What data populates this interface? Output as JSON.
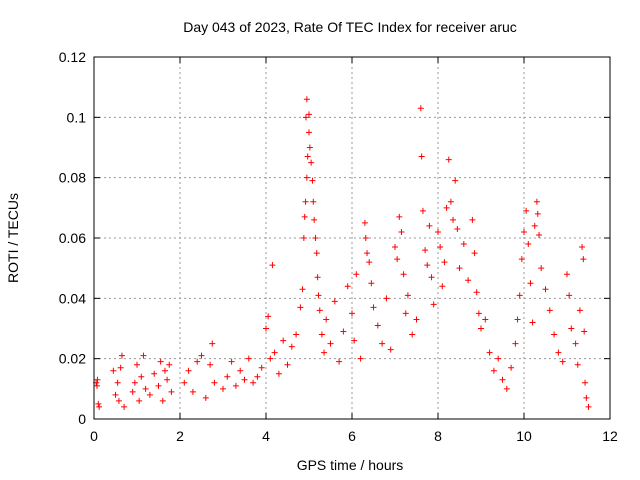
{
  "chart_data": {
    "type": "scatter",
    "title": "Day 043 of 2023, Rate Of TEC Index for receiver aruc",
    "xlabel": "GPS time / hours",
    "ylabel": "ROTI / TECUs",
    "xlim": [
      0,
      12
    ],
    "ylim": [
      0,
      0.12
    ],
    "xticks": [
      0,
      2,
      4,
      6,
      8,
      10,
      12
    ],
    "xtick_labels": [
      "0",
      "2",
      "4",
      "6",
      "8",
      "10",
      "12"
    ],
    "yticks": [
      0,
      0.02,
      0.04,
      0.06,
      0.08,
      0.1,
      0.12
    ],
    "ytick_labels": [
      "0",
      "0.02",
      "0.04",
      "0.06",
      "0.08",
      "0.1",
      "0.12"
    ],
    "grid": true,
    "marker": "+",
    "marker_color": "#ff0000",
    "series": [
      {
        "name": "ROTI",
        "points": [
          [
            0.05,
            0.012
          ],
          [
            0.08,
            0.013
          ],
          [
            0.1,
            0.005
          ],
          [
            0.12,
            0.004
          ],
          [
            0.07,
            0.011
          ],
          [
            0.45,
            0.016
          ],
          [
            0.5,
            0.008
          ],
          [
            0.55,
            0.012
          ],
          [
            0.58,
            0.006
          ],
          [
            0.62,
            0.017
          ],
          [
            0.65,
            0.021
          ],
          [
            0.7,
            0.004
          ],
          [
            0.9,
            0.009
          ],
          [
            0.95,
            0.012
          ],
          [
            1.0,
            0.018
          ],
          [
            1.05,
            0.006
          ],
          [
            1.1,
            0.014
          ],
          [
            1.15,
            0.021
          ],
          [
            1.2,
            0.01
          ],
          [
            1.3,
            0.008
          ],
          [
            1.4,
            0.015
          ],
          [
            1.5,
            0.011
          ],
          [
            1.55,
            0.019
          ],
          [
            1.6,
            0.006
          ],
          [
            1.65,
            0.016
          ],
          [
            1.7,
            0.013
          ],
          [
            1.75,
            0.018
          ],
          [
            1.8,
            0.009
          ],
          [
            2.1,
            0.012
          ],
          [
            2.2,
            0.016
          ],
          [
            2.3,
            0.009
          ],
          [
            2.4,
            0.019
          ],
          [
            2.5,
            0.021
          ],
          [
            2.6,
            0.007
          ],
          [
            2.7,
            0.018
          ],
          [
            2.75,
            0.025
          ],
          [
            2.8,
            0.012
          ],
          [
            3.0,
            0.01
          ],
          [
            3.1,
            0.014
          ],
          [
            3.2,
            0.019
          ],
          [
            3.3,
            0.011
          ],
          [
            3.4,
            0.016
          ],
          [
            3.5,
            0.013
          ],
          [
            3.6,
            0.02
          ],
          [
            3.7,
            0.012
          ],
          [
            3.8,
            0.014
          ],
          [
            3.9,
            0.017
          ],
          [
            4.0,
            0.03
          ],
          [
            4.05,
            0.034
          ],
          [
            4.1,
            0.02
          ],
          [
            4.15,
            0.051
          ],
          [
            4.2,
            0.022
          ],
          [
            4.3,
            0.015
          ],
          [
            4.4,
            0.026
          ],
          [
            4.5,
            0.018
          ],
          [
            4.6,
            0.024
          ],
          [
            4.7,
            0.028
          ],
          [
            4.8,
            0.037
          ],
          [
            4.85,
            0.043
          ],
          [
            4.88,
            0.06
          ],
          [
            4.9,
            0.067
          ],
          [
            4.92,
            0.072
          ],
          [
            4.95,
            0.08
          ],
          [
            4.97,
            0.087
          ],
          [
            5.0,
            0.095
          ],
          [
            4.93,
            0.1
          ],
          [
            4.95,
            0.106
          ],
          [
            5.0,
            0.101
          ],
          [
            5.02,
            0.09
          ],
          [
            5.05,
            0.085
          ],
          [
            5.08,
            0.079
          ],
          [
            5.1,
            0.072
          ],
          [
            5.12,
            0.066
          ],
          [
            5.15,
            0.06
          ],
          [
            5.18,
            0.055
          ],
          [
            5.2,
            0.047
          ],
          [
            5.22,
            0.041
          ],
          [
            5.25,
            0.036
          ],
          [
            5.3,
            0.028
          ],
          [
            5.35,
            0.022
          ],
          [
            5.4,
            0.033
          ],
          [
            5.5,
            0.025
          ],
          [
            5.6,
            0.039
          ],
          [
            5.7,
            0.019
          ],
          [
            5.8,
            0.029
          ],
          [
            5.9,
            0.044
          ],
          [
            6.0,
            0.035
          ],
          [
            6.05,
            0.026
          ],
          [
            6.1,
            0.048
          ],
          [
            6.2,
            0.02
          ],
          [
            6.3,
            0.065
          ],
          [
            6.32,
            0.06
          ],
          [
            6.35,
            0.055
          ],
          [
            6.4,
            0.052
          ],
          [
            6.45,
            0.045
          ],
          [
            6.5,
            0.037
          ],
          [
            6.6,
            0.031
          ],
          [
            6.7,
            0.025
          ],
          [
            6.8,
            0.04
          ],
          [
            6.9,
            0.023
          ],
          [
            7.0,
            0.057
          ],
          [
            7.05,
            0.053
          ],
          [
            7.1,
            0.067
          ],
          [
            7.15,
            0.062
          ],
          [
            7.2,
            0.048
          ],
          [
            7.25,
            0.035
          ],
          [
            7.3,
            0.041
          ],
          [
            7.4,
            0.028
          ],
          [
            7.5,
            0.033
          ],
          [
            7.6,
            0.103
          ],
          [
            7.62,
            0.087
          ],
          [
            7.65,
            0.069
          ],
          [
            7.7,
            0.056
          ],
          [
            7.75,
            0.051
          ],
          [
            7.8,
            0.064
          ],
          [
            7.85,
            0.047
          ],
          [
            7.9,
            0.038
          ],
          [
            8.0,
            0.062
          ],
          [
            8.05,
            0.057
          ],
          [
            8.1,
            0.044
          ],
          [
            8.15,
            0.052
          ],
          [
            8.2,
            0.07
          ],
          [
            8.25,
            0.086
          ],
          [
            8.3,
            0.072
          ],
          [
            8.35,
            0.066
          ],
          [
            8.4,
            0.079
          ],
          [
            8.45,
            0.063
          ],
          [
            8.5,
            0.05
          ],
          [
            8.6,
            0.058
          ],
          [
            8.7,
            0.046
          ],
          [
            8.8,
            0.066
          ],
          [
            8.85,
            0.055
          ],
          [
            8.9,
            0.042
          ],
          [
            8.95,
            0.035
          ],
          [
            9.0,
            0.03
          ],
          [
            9.1,
            0.033
          ],
          [
            9.2,
            0.022
          ],
          [
            9.3,
            0.016
          ],
          [
            9.4,
            0.02
          ],
          [
            9.5,
            0.013
          ],
          [
            9.6,
            0.01
          ],
          [
            9.7,
            0.017
          ],
          [
            9.8,
            0.025
          ],
          [
            9.85,
            0.033
          ],
          [
            9.9,
            0.041
          ],
          [
            9.95,
            0.053
          ],
          [
            10.0,
            0.062
          ],
          [
            10.05,
            0.069
          ],
          [
            10.1,
            0.058
          ],
          [
            10.15,
            0.045
          ],
          [
            10.2,
            0.032
          ],
          [
            10.25,
            0.064
          ],
          [
            10.3,
            0.072
          ],
          [
            10.32,
            0.068
          ],
          [
            10.35,
            0.061
          ],
          [
            10.4,
            0.05
          ],
          [
            10.5,
            0.043
          ],
          [
            10.6,
            0.036
          ],
          [
            10.7,
            0.028
          ],
          [
            10.8,
            0.022
          ],
          [
            10.9,
            0.019
          ],
          [
            11.0,
            0.048
          ],
          [
            11.05,
            0.041
          ],
          [
            11.1,
            0.03
          ],
          [
            11.2,
            0.025
          ],
          [
            11.25,
            0.018
          ],
          [
            11.3,
            0.036
          ],
          [
            11.35,
            0.057
          ],
          [
            11.38,
            0.053
          ],
          [
            11.4,
            0.029
          ],
          [
            11.42,
            0.012
          ],
          [
            11.45,
            0.007
          ],
          [
            11.5,
            0.004
          ]
        ]
      }
    ]
  }
}
